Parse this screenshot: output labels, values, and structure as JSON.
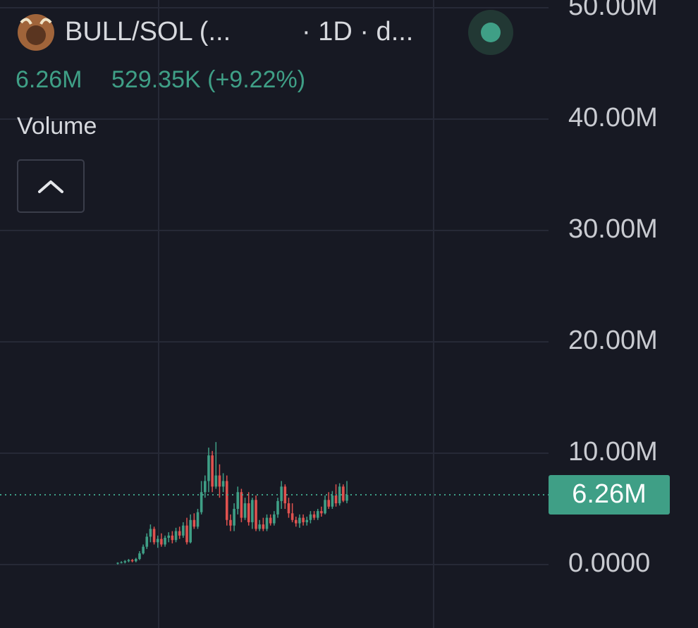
{
  "header": {
    "symbol": "BULL/SOL (...",
    "interval": "· 1D · d...",
    "change": "529.35K (+9.22%)",
    "pane": "Volume"
  },
  "chart_data": {
    "type": "candlestick",
    "up_color": "#3f9f86",
    "down_color": "#e0524f",
    "ylim": [
      -5700000,
      50700000
    ],
    "yticks": [
      {
        "value": 0,
        "label": "0.0000"
      },
      {
        "value": 10000000,
        "label": "10.00M"
      },
      {
        "value": 20000000,
        "label": "20.00M"
      },
      {
        "value": 30000000,
        "label": "30.00M"
      },
      {
        "value": 40000000,
        "label": "40.00M"
      },
      {
        "value": 50000000,
        "label": "50.00M"
      }
    ],
    "grid": true,
    "last_price": {
      "value": 6260000,
      "label": "6.26M"
    },
    "open": [
      100000,
      150000,
      200000,
      300000,
      400000,
      300000,
      500000,
      1000000,
      1600000,
      2500000,
      3200000,
      2000000,
      2300000,
      1800000,
      2400000,
      2600000,
      2200000,
      3000000,
      2600000,
      3500000,
      2000000,
      4000000,
      3400000,
      4700000,
      6500000,
      7500000,
      9800000,
      7000000,
      8000000,
      7000000,
      7500000,
      4000000,
      3500000,
      5000000,
      6500000,
      4200000,
      5500000,
      3800000,
      5800000,
      3200000,
      3600000,
      3200000,
      4200000,
      3700000,
      4500000,
      5700000,
      7000000,
      5500000,
      4600000,
      4000000,
      3700000,
      4200000,
      3800000,
      4000000,
      4500000,
      4200000,
      4800000,
      4600000,
      5800000,
      5200000,
      6200000,
      5500000,
      7000000,
      5730000
    ],
    "high": [
      200000,
      300000,
      400000,
      500000,
      500000,
      600000,
      1200000,
      1800000,
      2800000,
      3600000,
      3400000,
      2600000,
      2800000,
      2600000,
      2900000,
      3000000,
      3300000,
      3400000,
      3800000,
      4200000,
      4500000,
      4600000,
      5000000,
      7500000,
      8000000,
      10500000,
      10200000,
      11000000,
      9000000,
      8200000,
      8000000,
      4500000,
      5500000,
      7000000,
      6800000,
      6000000,
      6500000,
      6000000,
      6200000,
      4000000,
      4200000,
      4500000,
      4500000,
      4800000,
      6000000,
      7500000,
      7200000,
      6000000,
      5500000,
      4300000,
      4500000,
      4500000,
      4300000,
      4800000,
      4800000,
      5000000,
      5200000,
      6200000,
      6500000,
      6600000,
      7200000,
      7300000,
      7200000,
      7500000
    ],
    "low": [
      0,
      100000,
      100000,
      200000,
      200000,
      200000,
      400000,
      900000,
      1400000,
      2000000,
      1800000,
      1500000,
      1600000,
      1600000,
      2000000,
      1900000,
      2000000,
      2300000,
      2400000,
      1800000,
      1900000,
      3200000,
      3200000,
      4500000,
      6000000,
      6500000,
      6500000,
      6800000,
      6000000,
      6500000,
      3500000,
      3000000,
      3000000,
      4500000,
      3800000,
      4000000,
      3500000,
      3200000,
      3000000,
      3000000,
      3000000,
      3000000,
      3500000,
      3500000,
      4200000,
      5000000,
      5000000,
      4200000,
      3800000,
      3400000,
      3300000,
      3500000,
      3500000,
      3700000,
      4000000,
      4000000,
      4300000,
      4500000,
      5000000,
      5000000,
      5200000,
      5300000,
      5600000,
      5500000
    ],
    "close": [
      150000,
      200000,
      300000,
      400000,
      300000,
      500000,
      1000000,
      1600000,
      2500000,
      3200000,
      2000000,
      2300000,
      1800000,
      2400000,
      2600000,
      2200000,
      3000000,
      2600000,
      3500000,
      2000000,
      4000000,
      3400000,
      4700000,
      6500000,
      7500000,
      9800000,
      7000000,
      8000000,
      7000000,
      7500000,
      4000000,
      3500000,
      5000000,
      6500000,
      4200000,
      5500000,
      3800000,
      5800000,
      3200000,
      3600000,
      3200000,
      4200000,
      3700000,
      4500000,
      5700000,
      7000000,
      5500000,
      4600000,
      4000000,
      3700000,
      4200000,
      3800000,
      4000000,
      4500000,
      4200000,
      4800000,
      4600000,
      5800000,
      5200000,
      6200000,
      5500000,
      7000000,
      5730000,
      6260000
    ]
  }
}
